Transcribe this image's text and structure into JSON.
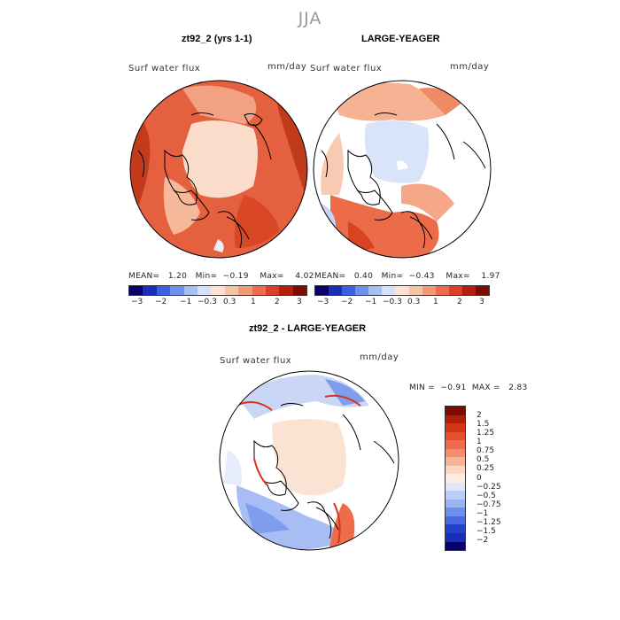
{
  "figure": {
    "season": "JJA",
    "units": "mm/day",
    "variable": "Surf water flux"
  },
  "panels": [
    {
      "title": "zt92_2 (yrs 1-1)",
      "stats": {
        "mean": "1.20",
        "min": "−0.19",
        "max": "4.02"
      }
    },
    {
      "title": "LARGE-YEAGER",
      "stats": {
        "mean": "0.40",
        "min": "−0.43",
        "max": "1.97"
      }
    },
    {
      "title": "zt92_2 - LARGE-YEAGER",
      "stats": {
        "min": "−0.91",
        "max": "2.83"
      }
    }
  ],
  "stat_labels": {
    "mean": "MEAN=",
    "min": "Min=",
    "max": "Max=",
    "min_upper": "MIN =",
    "max_upper": "MAX ="
  },
  "top_colorbar": {
    "tick_labels": [
      "−3",
      "−2",
      "−1",
      "−0.3",
      "0.3",
      "1",
      "2",
      "3"
    ],
    "colors": [
      "#08006b",
      "#1a2fb8",
      "#3a5fe0",
      "#6f8ff0",
      "#a9bdf5",
      "#d6e2fa",
      "#fbe3d3",
      "#f8c3a5",
      "#f49a78",
      "#ee6c4c",
      "#de3f22",
      "#b41f0b",
      "#7d0b00"
    ]
  },
  "diff_colorbar": {
    "labels": [
      "2",
      "1.5",
      "1.25",
      "1",
      "0.75",
      "0.5",
      "0.25",
      "0",
      "−0.25",
      "−0.5",
      "−0.75",
      "−1",
      "−1.25",
      "−1.5",
      "−2"
    ],
    "colors": [
      "#7d0b00",
      "#b41f0b",
      "#d4351b",
      "#e4502e",
      "#ee6c4c",
      "#f38d6e",
      "#f7b394",
      "#fbd6c0",
      "#fdece2",
      "#dfe7fb",
      "#bccdf6",
      "#9ab3f1",
      "#6f8ff0",
      "#4a6ae4",
      "#2442c8",
      "#1a2fb8",
      "#08006b"
    ]
  }
}
